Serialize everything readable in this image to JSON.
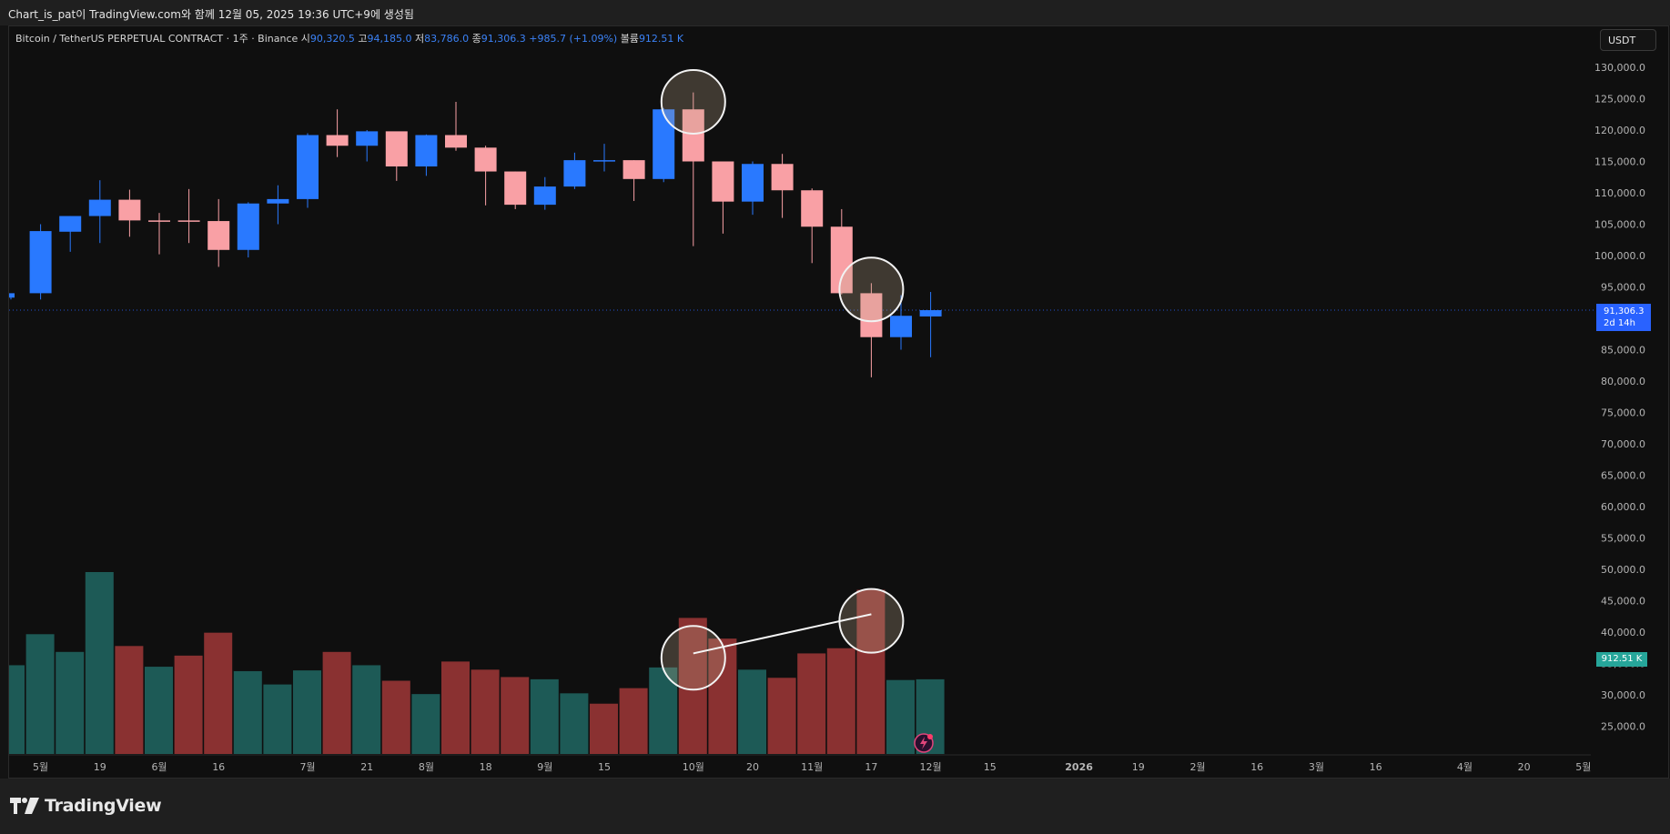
{
  "header": {
    "attribution": "Chart_is_pat이 TradingView.com와 함께 12월 05, 2025 19:36 UTC+9에 생성됨"
  },
  "legend": {
    "symbol": "Bitcoin / TetherUS PERPETUAL CONTRACT · 1주 · Binance",
    "open_label": "시",
    "open": "90,320.5",
    "high_label": "고",
    "high": "94,185.0",
    "low_label": "저",
    "low": "83,786.0",
    "close_label": "종",
    "close": "91,306.3",
    "change": "+985.7 (+1.09%)",
    "volume_label": "볼륨",
    "volume": "912.51 K"
  },
  "currency_button": "USDT",
  "price_tag": {
    "price": "91,306.3",
    "countdown": "2d 14h"
  },
  "volume_tag": "912.51 K",
  "brand": {
    "name": "TradingView"
  },
  "colors": {
    "up": "#2979ff",
    "down": "#f9a0a5",
    "vol_up": "#1d5a56",
    "vol_down": "#8a3131",
    "background": "#0f0f0f"
  },
  "chart_data": {
    "type": "candlestick",
    "interval": "1주",
    "price_axis_ticks": [
      "130,000.0",
      "125,000.0",
      "120,000.0",
      "115,000.0",
      "110,000.0",
      "105,000.0",
      "100,000.0",
      "95,000.0",
      "90,000.0",
      "85,000.0",
      "80,000.0",
      "75,000.0",
      "70,000.0",
      "65,000.0",
      "60,000.0",
      "55,000.0",
      "50,000.0",
      "45,000.0",
      "40,000.0",
      "35,000.0",
      "30,000.0",
      "25,000.0"
    ],
    "time_axis_labels": [
      {
        "label": "5월",
        "slot": 1
      },
      {
        "label": "19",
        "slot": 3
      },
      {
        "label": "6월",
        "slot": 5
      },
      {
        "label": "16",
        "slot": 7
      },
      {
        "label": "7월",
        "slot": 10
      },
      {
        "label": "21",
        "slot": 12
      },
      {
        "label": "8월",
        "slot": 14
      },
      {
        "label": "18",
        "slot": 16
      },
      {
        "label": "9월",
        "slot": 18
      },
      {
        "label": "15",
        "slot": 20
      },
      {
        "label": "10월",
        "slot": 23
      },
      {
        "label": "20",
        "slot": 25
      },
      {
        "label": "11월",
        "slot": 27
      },
      {
        "label": "17",
        "slot": 29
      },
      {
        "label": "12월",
        "slot": 31
      },
      {
        "label": "15",
        "slot": 33
      },
      {
        "label": "2026",
        "slot": 36
      },
      {
        "label": "19",
        "slot": 38
      },
      {
        "label": "2월",
        "slot": 40
      },
      {
        "label": "16",
        "slot": 42
      },
      {
        "label": "3월",
        "slot": 44
      },
      {
        "label": "16",
        "slot": 46
      },
      {
        "label": "4월",
        "slot": 49
      },
      {
        "label": "20",
        "slot": 51
      },
      {
        "label": "5월",
        "slot": 53
      }
    ],
    "ohlc": [
      {
        "o": 93300,
        "h": 93900,
        "l": 93000,
        "c": 94000
      },
      {
        "o": 94000,
        "h": 105000,
        "l": 93000,
        "c": 103900
      },
      {
        "o": 103800,
        "h": 106300,
        "l": 100600,
        "c": 106300
      },
      {
        "o": 106300,
        "h": 112000,
        "l": 102000,
        "c": 108900
      },
      {
        "o": 108900,
        "h": 110500,
        "l": 103000,
        "c": 105600
      },
      {
        "o": 105600,
        "h": 106800,
        "l": 100200,
        "c": 105500
      },
      {
        "o": 105600,
        "h": 110600,
        "l": 102000,
        "c": 105500
      },
      {
        "o": 105500,
        "h": 109000,
        "l": 98200,
        "c": 100900
      },
      {
        "o": 100900,
        "h": 108500,
        "l": 99700,
        "c": 108300
      },
      {
        "o": 108300,
        "h": 111200,
        "l": 105000,
        "c": 109000
      },
      {
        "o": 109000,
        "h": 119500,
        "l": 107600,
        "c": 119200
      },
      {
        "o": 119200,
        "h": 123300,
        "l": 115700,
        "c": 117500
      },
      {
        "o": 117500,
        "h": 120000,
        "l": 115000,
        "c": 119800
      },
      {
        "o": 119800,
        "h": 119700,
        "l": 111900,
        "c": 114200
      },
      {
        "o": 114200,
        "h": 119300,
        "l": 112700,
        "c": 119200
      },
      {
        "o": 119200,
        "h": 124500,
        "l": 116700,
        "c": 117200
      },
      {
        "o": 117200,
        "h": 117500,
        "l": 108000,
        "c": 113400
      },
      {
        "o": 113400,
        "h": 113400,
        "l": 107400,
        "c": 108100
      },
      {
        "o": 108100,
        "h": 112500,
        "l": 107300,
        "c": 111000
      },
      {
        "o": 111000,
        "h": 116400,
        "l": 110600,
        "c": 115200
      },
      {
        "o": 115200,
        "h": 117800,
        "l": 113400,
        "c": 115200
      },
      {
        "o": 115200,
        "h": 115200,
        "l": 108700,
        "c": 112200
      },
      {
        "o": 112200,
        "h": 123500,
        "l": 111700,
        "c": 123300
      },
      {
        "o": 123300,
        "h": 126000,
        "l": 101500,
        "c": 115000
      },
      {
        "o": 115000,
        "h": 115000,
        "l": 103500,
        "c": 108600
      },
      {
        "o": 108600,
        "h": 115000,
        "l": 106500,
        "c": 114600
      },
      {
        "o": 114600,
        "h": 116200,
        "l": 106000,
        "c": 110400
      },
      {
        "o": 110400,
        "h": 110700,
        "l": 98800,
        "c": 104600
      },
      {
        "o": 104600,
        "h": 107400,
        "l": 93800,
        "c": 94000
      },
      {
        "o": 94000,
        "h": 95600,
        "l": 80600,
        "c": 87000
      },
      {
        "o": 87000,
        "h": 93700,
        "l": 85000,
        "c": 90400
      },
      {
        "o": 90300,
        "h": 94200,
        "l": 83800,
        "c": 91300
      }
    ],
    "volume": [
      {
        "v": 37000,
        "dir": "up"
      },
      {
        "v": 41200,
        "dir": "up"
      },
      {
        "v": 38800,
        "dir": "up"
      },
      {
        "v": 49600,
        "dir": "up"
      },
      {
        "v": 39600,
        "dir": "down"
      },
      {
        "v": 36800,
        "dir": "up"
      },
      {
        "v": 38300,
        "dir": "down"
      },
      {
        "v": 41400,
        "dir": "down"
      },
      {
        "v": 36200,
        "dir": "up"
      },
      {
        "v": 34400,
        "dir": "up"
      },
      {
        "v": 36300,
        "dir": "up"
      },
      {
        "v": 38800,
        "dir": "down"
      },
      {
        "v": 37000,
        "dir": "up"
      },
      {
        "v": 34900,
        "dir": "down"
      },
      {
        "v": 33100,
        "dir": "up"
      },
      {
        "v": 37500,
        "dir": "down"
      },
      {
        "v": 36400,
        "dir": "down"
      },
      {
        "v": 35400,
        "dir": "down"
      },
      {
        "v": 35100,
        "dir": "up"
      },
      {
        "v": 33200,
        "dir": "up"
      },
      {
        "v": 31800,
        "dir": "down"
      },
      {
        "v": 33900,
        "dir": "down"
      },
      {
        "v": 36700,
        "dir": "up"
      },
      {
        "v": 43400,
        "dir": "down"
      },
      {
        "v": 40600,
        "dir": "down"
      },
      {
        "v": 36400,
        "dir": "up"
      },
      {
        "v": 35300,
        "dir": "down"
      },
      {
        "v": 38600,
        "dir": "down"
      },
      {
        "v": 39300,
        "dir": "down"
      },
      {
        "v": 47200,
        "dir": "down"
      },
      {
        "v": 35000,
        "dir": "up"
      },
      {
        "v": 35100,
        "dir": "up"
      }
    ],
    "annotations": [
      {
        "type": "circle",
        "slot": 23,
        "price": 124500
      },
      {
        "type": "circle",
        "slot": 29,
        "price": 94600
      },
      {
        "type": "circle",
        "slot": 23,
        "price": 38000
      },
      {
        "type": "circle",
        "slot": 29,
        "price": 43000
      },
      {
        "type": "trendline",
        "from": {
          "slot": 23,
          "price": 38600
        },
        "to": {
          "slot": 29,
          "price": 43900
        }
      }
    ],
    "current_price": 91306.3
  }
}
